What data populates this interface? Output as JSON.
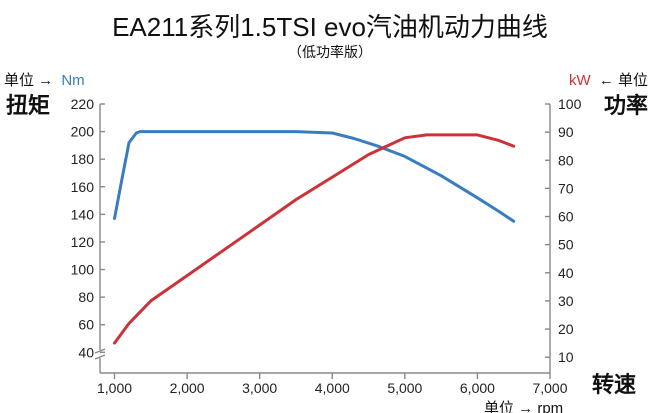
{
  "chart_data": {
    "type": "line",
    "title": "EA211系列1.5TSI evo汽油机动力曲线",
    "subtitle": "（低功率版）",
    "x_axis": {
      "label": "转速",
      "unit_text": "单位 → rpm",
      "range": [
        800,
        7000
      ],
      "ticks": [
        1000,
        2000,
        3000,
        4000,
        5000,
        6000,
        7000
      ],
      "tick_labels": [
        "1,000",
        "2,000",
        "3,000",
        "4,000",
        "5,000",
        "6,000",
        "7,000"
      ]
    },
    "y_left": {
      "label": "扭矩",
      "unit_prefix": "单位 →",
      "unit": "Nm",
      "range": [
        25,
        220
      ],
      "ticks": [
        40,
        60,
        80,
        100,
        120,
        140,
        160,
        180,
        200,
        220
      ],
      "axis_break": true
    },
    "y_right": {
      "label": "功率",
      "unit": "kW",
      "unit_suffix": "← 单位",
      "range": [
        4.375,
        100
      ],
      "ticks": [
        10,
        20,
        30,
        40,
        50,
        60,
        70,
        80,
        90,
        100
      ]
    },
    "grid": false,
    "series": [
      {
        "name": "扭矩",
        "axis": "left",
        "color": "#3a7cc0",
        "x": [
          1000,
          1100,
          1200,
          1300,
          1350,
          1500,
          2000,
          3000,
          3500,
          4000,
          4300,
          4600,
          5000,
          5500,
          6000,
          6300,
          6500
        ],
        "y": [
          137,
          165,
          192,
          199,
          200,
          200,
          200,
          200,
          200,
          199,
          195,
          190,
          182,
          168,
          152,
          142,
          135
        ]
      },
      {
        "name": "功率",
        "axis": "right",
        "color": "#cc3339",
        "x": [
          1000,
          1200,
          1500,
          2000,
          2500,
          3000,
          3500,
          4000,
          4500,
          5000,
          5300,
          5500,
          6000,
          6300,
          6500
        ],
        "y": [
          15,
          22,
          30,
          39,
          48,
          57,
          66,
          74,
          82,
          88,
          89,
          89,
          89,
          87,
          85
        ]
      }
    ]
  }
}
